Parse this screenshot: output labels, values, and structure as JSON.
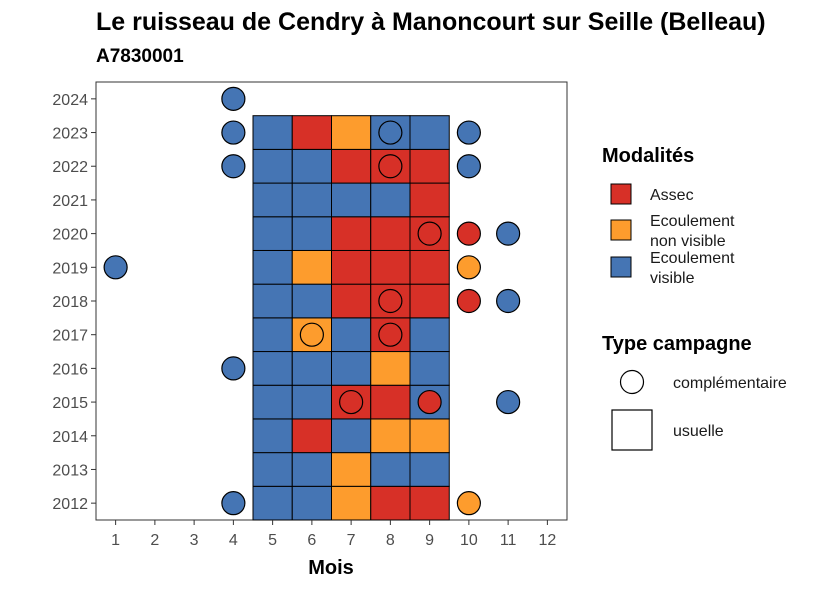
{
  "chart_data": {
    "type": "heatmap",
    "title": "Le ruisseau de Cendry à Manoncourt sur Seille (Belleau)",
    "subtitle": "A7830001",
    "xlabel": "Mois",
    "ylabel": "",
    "x_ticks": [
      "1",
      "2",
      "3",
      "4",
      "5",
      "6",
      "7",
      "8",
      "9",
      "10",
      "11",
      "12"
    ],
    "y_ticks": [
      "2012",
      "2013",
      "2014",
      "2015",
      "2016",
      "2017",
      "2018",
      "2019",
      "2020",
      "2021",
      "2022",
      "2023",
      "2024"
    ],
    "xlim": [
      0.5,
      12.5
    ],
    "ylim": [
      2011.5,
      2024.5
    ],
    "colors": {
      "Assec": "#d73027",
      "Ecoulement non visible": "#fd9c2d",
      "Ecoulement visible": "#4575b4"
    },
    "legend_modalites": {
      "title": "Modalités",
      "items": [
        {
          "key": "Assec",
          "lines": [
            "Assec"
          ]
        },
        {
          "key": "Ecoulement non visible",
          "lines": [
            "Ecoulement",
            "non visible"
          ]
        },
        {
          "key": "Ecoulement visible",
          "lines": [
            "Ecoulement",
            "visible"
          ]
        }
      ]
    },
    "legend_type": {
      "title": "Type campagne",
      "items": [
        {
          "shape": "circle",
          "label": "complémentaire"
        },
        {
          "shape": "square",
          "label": "usuelle"
        }
      ]
    },
    "usuelle": [
      {
        "year": 2012,
        "month": 5,
        "value": "Ecoulement visible"
      },
      {
        "year": 2012,
        "month": 6,
        "value": "Ecoulement visible"
      },
      {
        "year": 2012,
        "month": 7,
        "value": "Ecoulement non visible"
      },
      {
        "year": 2012,
        "month": 8,
        "value": "Assec"
      },
      {
        "year": 2012,
        "month": 9,
        "value": "Assec"
      },
      {
        "year": 2013,
        "month": 5,
        "value": "Ecoulement visible"
      },
      {
        "year": 2013,
        "month": 6,
        "value": "Ecoulement visible"
      },
      {
        "year": 2013,
        "month": 7,
        "value": "Ecoulement non visible"
      },
      {
        "year": 2013,
        "month": 8,
        "value": "Ecoulement visible"
      },
      {
        "year": 2013,
        "month": 9,
        "value": "Ecoulement visible"
      },
      {
        "year": 2014,
        "month": 5,
        "value": "Ecoulement visible"
      },
      {
        "year": 2014,
        "month": 6,
        "value": "Assec"
      },
      {
        "year": 2014,
        "month": 7,
        "value": "Ecoulement visible"
      },
      {
        "year": 2014,
        "month": 8,
        "value": "Ecoulement non visible"
      },
      {
        "year": 2014,
        "month": 9,
        "value": "Ecoulement non visible"
      },
      {
        "year": 2015,
        "month": 5,
        "value": "Ecoulement visible"
      },
      {
        "year": 2015,
        "month": 6,
        "value": "Ecoulement visible"
      },
      {
        "year": 2015,
        "month": 7,
        "value": "Assec"
      },
      {
        "year": 2015,
        "month": 8,
        "value": "Assec"
      },
      {
        "year": 2015,
        "month": 9,
        "value": "Ecoulement visible"
      },
      {
        "year": 2016,
        "month": 5,
        "value": "Ecoulement visible"
      },
      {
        "year": 2016,
        "month": 6,
        "value": "Ecoulement visible"
      },
      {
        "year": 2016,
        "month": 7,
        "value": "Ecoulement visible"
      },
      {
        "year": 2016,
        "month": 8,
        "value": "Ecoulement non visible"
      },
      {
        "year": 2016,
        "month": 9,
        "value": "Ecoulement visible"
      },
      {
        "year": 2017,
        "month": 5,
        "value": "Ecoulement visible"
      },
      {
        "year": 2017,
        "month": 6,
        "value": "Ecoulement non visible"
      },
      {
        "year": 2017,
        "month": 7,
        "value": "Ecoulement visible"
      },
      {
        "year": 2017,
        "month": 8,
        "value": "Assec"
      },
      {
        "year": 2017,
        "month": 9,
        "value": "Ecoulement visible"
      },
      {
        "year": 2018,
        "month": 5,
        "value": "Ecoulement visible"
      },
      {
        "year": 2018,
        "month": 6,
        "value": "Ecoulement visible"
      },
      {
        "year": 2018,
        "month": 7,
        "value": "Assec"
      },
      {
        "year": 2018,
        "month": 8,
        "value": "Assec"
      },
      {
        "year": 2018,
        "month": 9,
        "value": "Assec"
      },
      {
        "year": 2019,
        "month": 5,
        "value": "Ecoulement visible"
      },
      {
        "year": 2019,
        "month": 6,
        "value": "Ecoulement non visible"
      },
      {
        "year": 2019,
        "month": 7,
        "value": "Assec"
      },
      {
        "year": 2019,
        "month": 8,
        "value": "Assec"
      },
      {
        "year": 2019,
        "month": 9,
        "value": "Assec"
      },
      {
        "year": 2020,
        "month": 5,
        "value": "Ecoulement visible"
      },
      {
        "year": 2020,
        "month": 6,
        "value": "Ecoulement visible"
      },
      {
        "year": 2020,
        "month": 7,
        "value": "Assec"
      },
      {
        "year": 2020,
        "month": 8,
        "value": "Assec"
      },
      {
        "year": 2020,
        "month": 9,
        "value": "Assec"
      },
      {
        "year": 2021,
        "month": 5,
        "value": "Ecoulement visible"
      },
      {
        "year": 2021,
        "month": 6,
        "value": "Ecoulement visible"
      },
      {
        "year": 2021,
        "month": 7,
        "value": "Ecoulement visible"
      },
      {
        "year": 2021,
        "month": 8,
        "value": "Ecoulement visible"
      },
      {
        "year": 2021,
        "month": 9,
        "value": "Assec"
      },
      {
        "year": 2022,
        "month": 5,
        "value": "Ecoulement visible"
      },
      {
        "year": 2022,
        "month": 6,
        "value": "Ecoulement visible"
      },
      {
        "year": 2022,
        "month": 7,
        "value": "Assec"
      },
      {
        "year": 2022,
        "month": 8,
        "value": "Assec"
      },
      {
        "year": 2022,
        "month": 9,
        "value": "Assec"
      },
      {
        "year": 2023,
        "month": 5,
        "value": "Ecoulement visible"
      },
      {
        "year": 2023,
        "month": 6,
        "value": "Assec"
      },
      {
        "year": 2023,
        "month": 7,
        "value": "Ecoulement non visible"
      },
      {
        "year": 2023,
        "month": 8,
        "value": "Ecoulement visible"
      },
      {
        "year": 2023,
        "month": 9,
        "value": "Ecoulement visible"
      }
    ],
    "complementaire": [
      {
        "year": 2024,
        "month": 4,
        "value": "Ecoulement visible"
      },
      {
        "year": 2023,
        "month": 4,
        "value": "Ecoulement visible"
      },
      {
        "year": 2023,
        "month": 8,
        "value": "Ecoulement visible"
      },
      {
        "year": 2023,
        "month": 10,
        "value": "Ecoulement visible"
      },
      {
        "year": 2022,
        "month": 4,
        "value": "Ecoulement visible"
      },
      {
        "year": 2022,
        "month": 8,
        "value": "Assec"
      },
      {
        "year": 2022,
        "month": 10,
        "value": "Ecoulement visible"
      },
      {
        "year": 2020,
        "month": 9,
        "value": "Assec"
      },
      {
        "year": 2020,
        "month": 10,
        "value": "Assec"
      },
      {
        "year": 2020,
        "month": 11,
        "value": "Ecoulement visible"
      },
      {
        "year": 2019,
        "month": 1,
        "value": "Ecoulement visible"
      },
      {
        "year": 2019,
        "month": 10,
        "value": "Ecoulement non visible"
      },
      {
        "year": 2018,
        "month": 8,
        "value": "Assec"
      },
      {
        "year": 2018,
        "month": 10,
        "value": "Assec"
      },
      {
        "year": 2018,
        "month": 11,
        "value": "Ecoulement visible"
      },
      {
        "year": 2017,
        "month": 6,
        "value": "Ecoulement non visible"
      },
      {
        "year": 2017,
        "month": 8,
        "value": "Assec"
      },
      {
        "year": 2016,
        "month": 4,
        "value": "Ecoulement visible"
      },
      {
        "year": 2015,
        "month": 7,
        "value": "Assec"
      },
      {
        "year": 2015,
        "month": 9,
        "value": "Assec"
      },
      {
        "year": 2015,
        "month": 11,
        "value": "Ecoulement visible"
      },
      {
        "year": 2012,
        "month": 4,
        "value": "Ecoulement visible"
      },
      {
        "year": 2012,
        "month": 10,
        "value": "Ecoulement non visible"
      }
    ]
  }
}
